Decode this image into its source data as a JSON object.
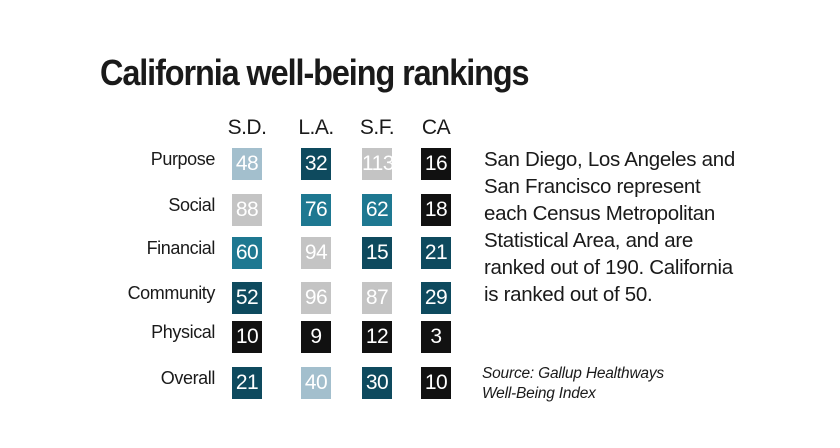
{
  "title": "California well-being rankings",
  "note": [
    "San Diego, Los Angeles and",
    "San Francisco represent",
    "each Census Metropolitan",
    "Statistical Area, and are",
    "ranked out of 190. California",
    "is ranked out of 50."
  ],
  "source": [
    "Source: Gallup Healthways",
    "Well-Being Index"
  ],
  "colors": {
    "tier_1": "#111111",
    "tier_2": "#0e4a5e",
    "tier_3": "#1e7891",
    "tier_4": "#a3bfcd",
    "tier_5": "#c4c4c4"
  },
  "chart_data": {
    "type": "table",
    "title": "California well-being rankings",
    "columns": [
      "S.D.",
      "L.A.",
      "S.F.",
      "CA"
    ],
    "rows": [
      {
        "label": "Purpose",
        "values": [
          48,
          32,
          113,
          16
        ],
        "tiers": [
          "tier_4",
          "tier_2",
          "tier_5",
          "tier_1"
        ]
      },
      {
        "label": "Social",
        "values": [
          88,
          76,
          62,
          18
        ],
        "tiers": [
          "tier_5",
          "tier_3",
          "tier_3",
          "tier_1"
        ]
      },
      {
        "label": "Financial",
        "values": [
          60,
          94,
          15,
          21
        ],
        "tiers": [
          "tier_3",
          "tier_5",
          "tier_2",
          "tier_2"
        ]
      },
      {
        "label": "Community",
        "values": [
          52,
          96,
          87,
          29
        ],
        "tiers": [
          "tier_2",
          "tier_5",
          "tier_5",
          "tier_2"
        ]
      },
      {
        "label": "Physical",
        "values": [
          10,
          9,
          12,
          3
        ],
        "tiers": [
          "tier_1",
          "tier_1",
          "tier_1",
          "tier_1"
        ]
      },
      {
        "label": "Overall",
        "values": [
          21,
          40,
          30,
          10
        ],
        "tiers": [
          "tier_2",
          "tier_4",
          "tier_2",
          "tier_1"
        ]
      }
    ]
  }
}
